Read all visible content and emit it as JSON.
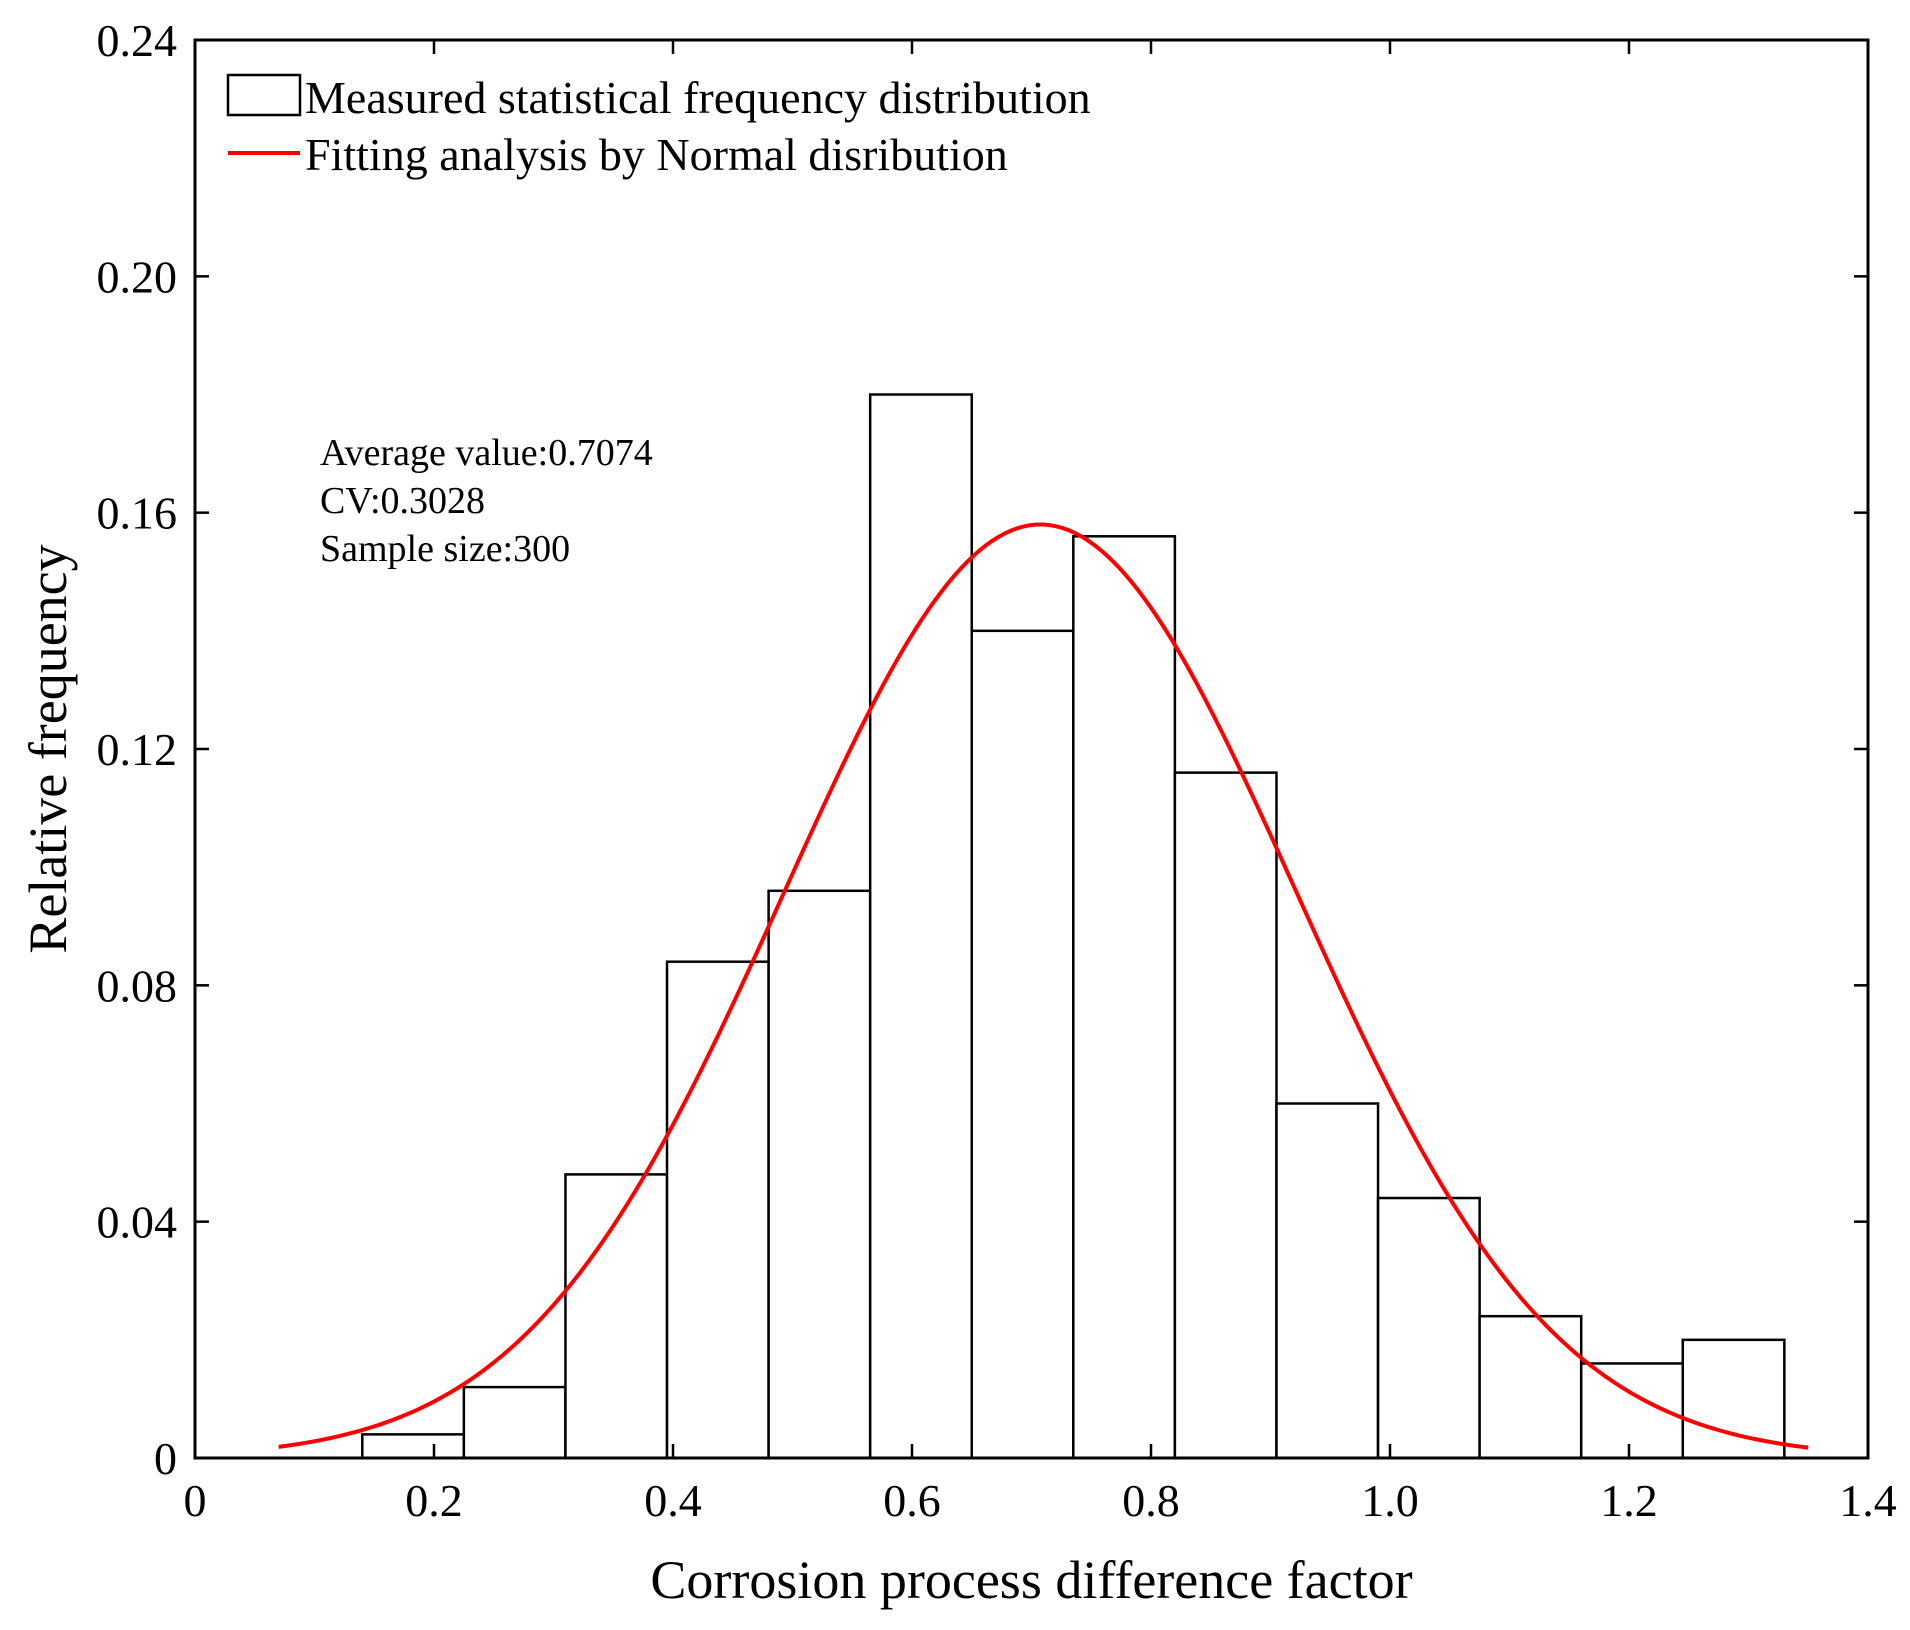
{
  "chart_data": {
    "type": "bar",
    "xlabel": "Corrosion process difference factor",
    "ylabel": "Relative frequency",
    "xlim": [
      0,
      1.4
    ],
    "ylim": [
      0,
      0.24
    ],
    "xticks": [
      0,
      0.2,
      0.4,
      0.6,
      0.8,
      1.0,
      1.2,
      1.4
    ],
    "xtick_labels": [
      "0",
      "0.2",
      "0.4",
      "0.6",
      "0.8",
      "1.0",
      "1.2",
      "1.4"
    ],
    "yticks": [
      0,
      0.04,
      0.08,
      0.12,
      0.16,
      0.2,
      0.24
    ],
    "ytick_labels": [
      "0",
      "0.04",
      "0.08",
      "0.12",
      "0.16",
      "0.20",
      "0.24"
    ],
    "grid": false,
    "legend_position": "top-left",
    "histogram": {
      "name": "Measured statistical frequency distribution",
      "bin_edges": [
        0.14,
        0.225,
        0.31,
        0.395,
        0.48,
        0.565,
        0.65,
        0.735,
        0.82,
        0.905,
        0.99,
        1.075,
        1.16,
        1.245,
        1.33
      ],
      "values": [
        0.004,
        0.012,
        0.048,
        0.084,
        0.096,
        0.18,
        0.14,
        0.156,
        0.116,
        0.06,
        0.044,
        0.024,
        0.016,
        0.02
      ],
      "fill_color": "#ffffff",
      "edge_color": "#000000"
    },
    "fit": {
      "name": "Fitting analysis by Normal disribution",
      "x_range": [
        0.07,
        1.35
      ],
      "mean": 0.7074,
      "std": 0.2142,
      "peak": 0.158,
      "color": "#ff0000"
    },
    "annotations": [
      "Average value:0.7074",
      "CV:0.3028",
      "Sample size:300"
    ]
  }
}
